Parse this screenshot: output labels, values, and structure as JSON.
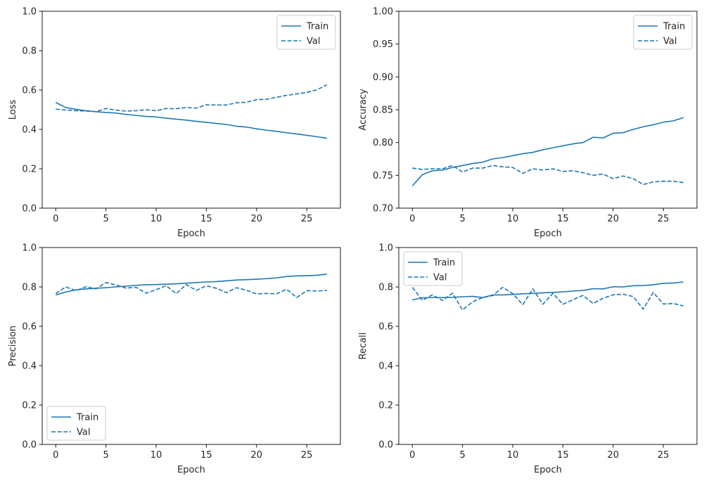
{
  "chart_data": [
    {
      "type": "line",
      "xlabel": "Epoch",
      "ylabel": "Loss",
      "xlim": [
        -1.35,
        28.35
      ],
      "ylim": [
        0.0,
        1.0
      ],
      "xticks": [
        0,
        5,
        10,
        15,
        20,
        25
      ],
      "xtick_labels": [
        "0",
        "5",
        "10",
        "15",
        "20",
        "25"
      ],
      "yticks": [
        0.0,
        0.2,
        0.4,
        0.6,
        0.8,
        1.0
      ],
      "ytick_labels": [
        "0.0",
        "0.2",
        "0.4",
        "0.6",
        "0.8",
        "1.0"
      ],
      "legend": "upper-right",
      "x": [
        0,
        1,
        2,
        3,
        4,
        5,
        6,
        7,
        8,
        9,
        10,
        11,
        12,
        13,
        14,
        15,
        16,
        17,
        18,
        19,
        20,
        21,
        22,
        23,
        24,
        25,
        26,
        27
      ],
      "series": [
        {
          "name": "Train",
          "style": "solid",
          "values": [
            0.537,
            0.511,
            0.502,
            0.495,
            0.49,
            0.486,
            0.483,
            0.476,
            0.471,
            0.466,
            0.463,
            0.457,
            0.452,
            0.447,
            0.441,
            0.436,
            0.43,
            0.425,
            0.416,
            0.412,
            0.403,
            0.396,
            0.39,
            0.383,
            0.377,
            0.37,
            0.363,
            0.355
          ]
        },
        {
          "name": "Val",
          "style": "dashed",
          "values": [
            0.503,
            0.498,
            0.495,
            0.493,
            0.49,
            0.506,
            0.498,
            0.493,
            0.495,
            0.5,
            0.495,
            0.506,
            0.505,
            0.511,
            0.508,
            0.525,
            0.524,
            0.524,
            0.535,
            0.538,
            0.551,
            0.553,
            0.563,
            0.573,
            0.58,
            0.588,
            0.601,
            0.626
          ]
        }
      ]
    },
    {
      "type": "line",
      "xlabel": "Epoch",
      "ylabel": "Accuracy",
      "xlim": [
        -1.35,
        28.35
      ],
      "ylim": [
        0.7,
        1.0
      ],
      "xticks": [
        0,
        5,
        10,
        15,
        20,
        25
      ],
      "xtick_labels": [
        "0",
        "5",
        "10",
        "15",
        "20",
        "25"
      ],
      "yticks": [
        0.7,
        0.75,
        0.8,
        0.85,
        0.9,
        0.95,
        1.0
      ],
      "ytick_labels": [
        "0.70",
        "0.75",
        "0.80",
        "0.85",
        "0.90",
        "0.95",
        "1.00"
      ],
      "legend": "upper-right",
      "x": [
        0,
        1,
        2,
        3,
        4,
        5,
        6,
        7,
        8,
        9,
        10,
        11,
        12,
        13,
        14,
        15,
        16,
        17,
        18,
        19,
        20,
        21,
        22,
        23,
        24,
        25,
        26,
        27
      ],
      "series": [
        {
          "name": "Train",
          "style": "solid",
          "values": [
            0.734,
            0.751,
            0.757,
            0.758,
            0.762,
            0.765,
            0.768,
            0.77,
            0.775,
            0.777,
            0.78,
            0.783,
            0.785,
            0.789,
            0.792,
            0.795,
            0.798,
            0.8,
            0.808,
            0.807,
            0.814,
            0.815,
            0.82,
            0.824,
            0.827,
            0.831,
            0.833,
            0.838
          ]
        },
        {
          "name": "Val",
          "style": "dashed",
          "values": [
            0.761,
            0.759,
            0.76,
            0.76,
            0.765,
            0.755,
            0.761,
            0.761,
            0.765,
            0.763,
            0.762,
            0.753,
            0.76,
            0.758,
            0.76,
            0.756,
            0.757,
            0.754,
            0.75,
            0.752,
            0.745,
            0.749,
            0.745,
            0.736,
            0.74,
            0.741,
            0.741,
            0.739
          ]
        }
      ]
    },
    {
      "type": "line",
      "xlabel": "Epoch",
      "ylabel": "Precision",
      "xlim": [
        -1.35,
        28.35
      ],
      "ylim": [
        0.0,
        1.0
      ],
      "xticks": [
        0,
        5,
        10,
        15,
        20,
        25
      ],
      "xtick_labels": [
        "0",
        "5",
        "10",
        "15",
        "20",
        "25"
      ],
      "yticks": [
        0.0,
        0.2,
        0.4,
        0.6,
        0.8,
        1.0
      ],
      "ytick_labels": [
        "0.0",
        "0.2",
        "0.4",
        "0.6",
        "0.8",
        "1.0"
      ],
      "legend": "lower-left",
      "x": [
        0,
        1,
        2,
        3,
        4,
        5,
        6,
        7,
        8,
        9,
        10,
        11,
        12,
        13,
        14,
        15,
        16,
        17,
        18,
        19,
        20,
        21,
        22,
        23,
        24,
        25,
        26,
        27
      ],
      "series": [
        {
          "name": "Train",
          "style": "solid",
          "values": [
            0.759,
            0.774,
            0.785,
            0.79,
            0.793,
            0.796,
            0.8,
            0.804,
            0.808,
            0.811,
            0.812,
            0.814,
            0.816,
            0.819,
            0.822,
            0.825,
            0.827,
            0.831,
            0.835,
            0.837,
            0.839,
            0.842,
            0.846,
            0.853,
            0.856,
            0.857,
            0.859,
            0.865
          ]
        },
        {
          "name": "Val",
          "style": "dashed",
          "values": [
            0.766,
            0.8,
            0.781,
            0.801,
            0.79,
            0.822,
            0.81,
            0.794,
            0.798,
            0.768,
            0.786,
            0.806,
            0.766,
            0.812,
            0.782,
            0.806,
            0.793,
            0.771,
            0.796,
            0.783,
            0.764,
            0.767,
            0.765,
            0.788,
            0.746,
            0.781,
            0.779,
            0.782
          ]
        }
      ]
    },
    {
      "type": "line",
      "xlabel": "Epoch",
      "ylabel": "Recall",
      "xlim": [
        -1.35,
        28.35
      ],
      "ylim": [
        0.0,
        1.0
      ],
      "xticks": [
        0,
        5,
        10,
        15,
        20,
        25
      ],
      "xtick_labels": [
        "0",
        "5",
        "10",
        "15",
        "20",
        "25"
      ],
      "yticks": [
        0.0,
        0.2,
        0.4,
        0.6,
        0.8,
        1.0
      ],
      "ytick_labels": [
        "0.0",
        "0.2",
        "0.4",
        "0.6",
        "0.8",
        "1.0"
      ],
      "legend": "upper-left",
      "x": [
        0,
        1,
        2,
        3,
        4,
        5,
        6,
        7,
        8,
        9,
        10,
        11,
        12,
        13,
        14,
        15,
        16,
        17,
        18,
        19,
        20,
        21,
        22,
        23,
        24,
        25,
        26,
        27
      ],
      "series": [
        {
          "name": "Train",
          "style": "solid",
          "values": [
            0.734,
            0.745,
            0.746,
            0.746,
            0.747,
            0.75,
            0.752,
            0.746,
            0.759,
            0.759,
            0.762,
            0.765,
            0.767,
            0.77,
            0.772,
            0.775,
            0.779,
            0.782,
            0.791,
            0.79,
            0.801,
            0.8,
            0.806,
            0.807,
            0.811,
            0.818,
            0.82,
            0.825
          ]
        },
        {
          "name": "Val",
          "style": "dashed",
          "values": [
            0.798,
            0.732,
            0.76,
            0.731,
            0.768,
            0.683,
            0.724,
            0.746,
            0.756,
            0.798,
            0.766,
            0.71,
            0.79,
            0.712,
            0.767,
            0.712,
            0.735,
            0.757,
            0.716,
            0.742,
            0.76,
            0.763,
            0.751,
            0.687,
            0.772,
            0.713,
            0.716,
            0.703
          ]
        }
      ]
    }
  ],
  "colors": {
    "series": "#1f77b4",
    "axis": "#000000",
    "text": "#262626",
    "legend_border": "#cccccc",
    "background": "#ffffff"
  }
}
